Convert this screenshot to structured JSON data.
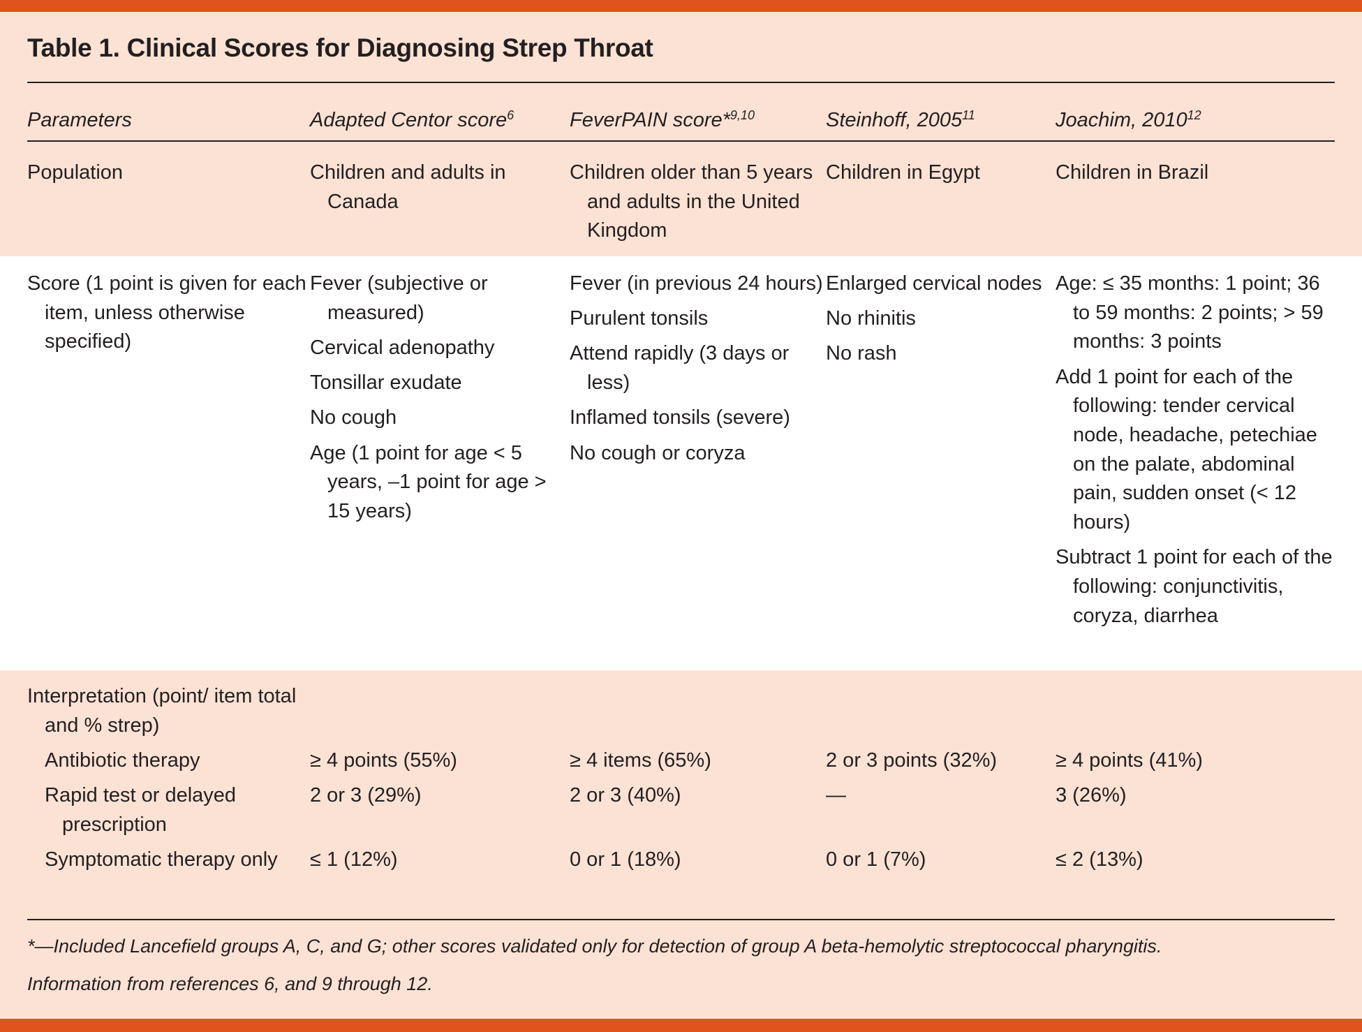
{
  "title": "Table 1. Clinical Scores for Diagnosing Strep Throat",
  "colors": {
    "accent": "#e0531c",
    "background": "#fce2d4",
    "band_white": "#ffffff"
  },
  "headers": [
    {
      "label": "Parameters",
      "sup": ""
    },
    {
      "label": "Adapted Centor score",
      "sup": "6"
    },
    {
      "label": "FeverPAIN score*",
      "sup": "9,10"
    },
    {
      "label": "Steinhoff, 2005",
      "sup": "11"
    },
    {
      "label": "Joachim, 2010",
      "sup": "12"
    }
  ],
  "population": {
    "label": "Population",
    "values": [
      "Children and adults in Canada",
      "Children older than 5 years and adults in the United Kingdom",
      "Children in Egypt",
      "Children in Brazil"
    ]
  },
  "score": {
    "label": "Score (1 point is given for each item, unless otherwise specified)",
    "columns": [
      [
        "Fever (subjective or measured)",
        "Cervical adenopathy",
        "Tonsillar exudate",
        "No cough",
        "Age (1 point for age < 5 years, –1 point for age > 15 years)"
      ],
      [
        "Fever (in previous 24 hours)",
        "Purulent tonsils",
        "Attend rapidly (3 days or less)",
        "Inflamed tonsils (severe)",
        "No cough or coryza"
      ],
      [
        "Enlarged cervical nodes",
        "No rhinitis",
        "No rash"
      ],
      [
        "Age: ≤ 35 months: 1 point; 36 to 59 months: 2 points; > 59 months: 3 points",
        "Add 1 point for each of the following: tender cervical node, headache, petechiae on the palate, abdominal pain, sudden onset (< 12 hours)",
        "Subtract 1 point for each of the following: conjunctivitis, coryza, diarrhea"
      ]
    ]
  },
  "interpretation": {
    "label": "Interpretation (point/ item total and % strep)",
    "rows": [
      {
        "label": "Antibiotic therapy",
        "values": [
          "≥ 4 points (55%)",
          "≥ 4 items (65%)",
          "2 or 3 points (32%)",
          "≥ 4 points (41%)"
        ]
      },
      {
        "label": "Rapid test or delayed prescription",
        "values": [
          "2 or 3 (29%)",
          "2 or 3 (40%)",
          "—",
          "3 (26%)"
        ]
      },
      {
        "label": "Symptomatic therapy only",
        "values": [
          "≤ 1 (12%)",
          "0 or 1 (18%)",
          "0 or 1 (7%)",
          "≤ 2 (13%)"
        ]
      }
    ]
  },
  "footnotes": [
    "*—Included Lancefield groups A, C, and G; other scores validated only for detection of group A beta-hemolytic streptococcal pharyngitis.",
    "Information from references 6, and 9 through 12."
  ]
}
